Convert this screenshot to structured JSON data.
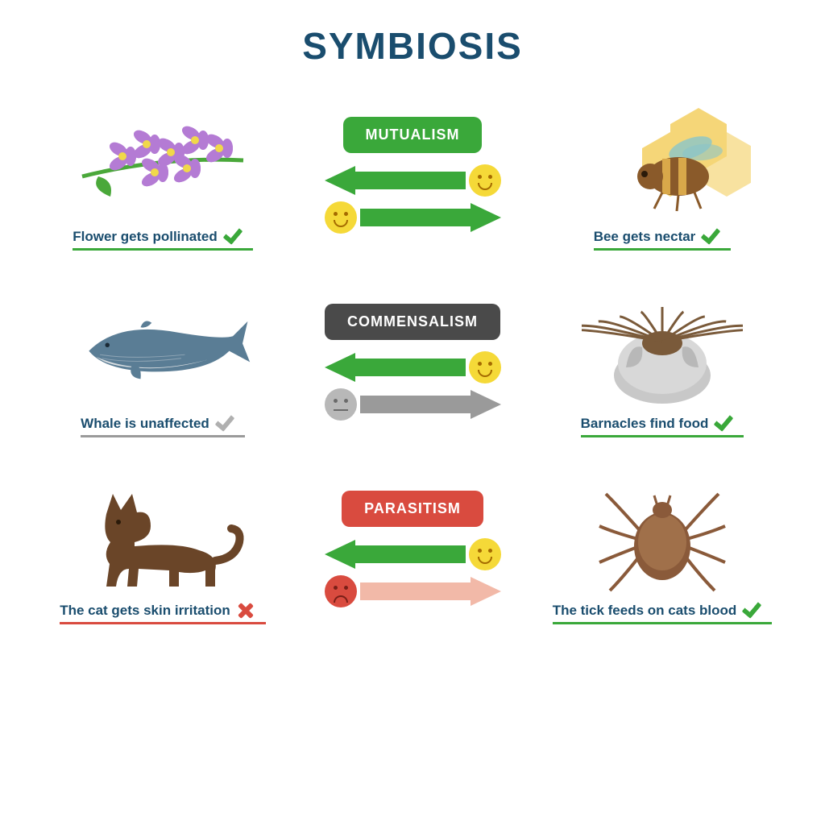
{
  "title": "SYMBIOSIS",
  "title_color": "#1a4d6e",
  "colors": {
    "green": "#3aa83a",
    "gray": "#4a4a4a",
    "red": "#d94b3f",
    "neutral_gray": "#9a9a9a",
    "yellow_face": "#f5d938",
    "face_feature": "#a56b00",
    "gray_face": "#b8b8b8",
    "gray_face_feature": "#6a6a6a",
    "red_face": "#d94b3f",
    "red_face_feature": "#7a1f18",
    "pink_arrow": "#f2b9a8",
    "caption_text": "#1a4d6e",
    "check_green": "#3aa83a",
    "check_gray": "#b0b0b0",
    "x_red": "#d94b3f"
  },
  "sections": [
    {
      "pill_label": "MUTUALISM",
      "pill_color": "#3aa83a",
      "left": {
        "caption": "Flower gets pollinated",
        "status": "check_green",
        "underline": "#3aa83a",
        "illus": "flower"
      },
      "right": {
        "caption": "Bee gets nectar",
        "status": "check_green",
        "underline": "#3aa83a",
        "illus": "bee"
      },
      "arrow_top": {
        "dir": "left",
        "color": "#3aa83a",
        "face": "happy",
        "face_bg": "#f5d938",
        "face_fg": "#a56b00"
      },
      "arrow_bottom": {
        "dir": "right",
        "color": "#3aa83a",
        "face": "happy",
        "face_bg": "#f5d938",
        "face_fg": "#a56b00"
      }
    },
    {
      "pill_label": "COMMENSALISM",
      "pill_color": "#4a4a4a",
      "left": {
        "caption": "Whale is unaffected",
        "status": "check_gray",
        "underline": "#9a9a9a",
        "illus": "whale"
      },
      "right": {
        "caption": "Barnacles find food",
        "status": "check_green",
        "underline": "#3aa83a",
        "illus": "barnacle"
      },
      "arrow_top": {
        "dir": "left",
        "color": "#3aa83a",
        "face": "happy",
        "face_bg": "#f5d938",
        "face_fg": "#a56b00"
      },
      "arrow_bottom": {
        "dir": "right",
        "color": "#9a9a9a",
        "face": "neutral",
        "face_bg": "#b8b8b8",
        "face_fg": "#6a6a6a"
      }
    },
    {
      "pill_label": "PARASITISM",
      "pill_color": "#d94b3f",
      "left": {
        "caption": "The cat gets skin irritation",
        "status": "x_red",
        "underline": "#d94b3f",
        "illus": "cat"
      },
      "right": {
        "caption": "The tick feeds on cats blood",
        "status": "check_green",
        "underline": "#3aa83a",
        "illus": "tick"
      },
      "arrow_top": {
        "dir": "left",
        "color": "#3aa83a",
        "face": "happy",
        "face_bg": "#f5d938",
        "face_fg": "#a56b00"
      },
      "arrow_bottom": {
        "dir": "right",
        "color": "#f2b9a8",
        "face": "sad",
        "face_bg": "#d94b3f",
        "face_fg": "#7a1f18"
      }
    }
  ],
  "illus_palette": {
    "flower_petal": "#b47bd4",
    "flower_center": "#f0d84a",
    "flower_stem": "#4aa83a",
    "honeycomb": "#f5d26a",
    "bee_body": "#8a5a2a",
    "bee_stripe": "#d9a84a",
    "bee_wing": "#8ac5c9",
    "whale_top": "#5a7d95",
    "whale_belly": "#d8dde0",
    "barnacle_shell": "#c8c8c8",
    "barnacle_top": "#7a5a3a",
    "cat_body": "#6a4528",
    "tick_body": "#8a5a3a"
  }
}
